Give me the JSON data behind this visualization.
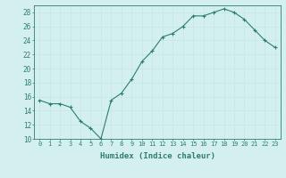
{
  "x": [
    0,
    1,
    2,
    3,
    4,
    5,
    6,
    7,
    8,
    9,
    10,
    11,
    12,
    13,
    14,
    15,
    16,
    17,
    18,
    19,
    20,
    21,
    22,
    23
  ],
  "y": [
    15.5,
    15.0,
    15.0,
    14.5,
    12.5,
    11.5,
    10.0,
    15.5,
    16.5,
    18.5,
    21.0,
    22.5,
    24.5,
    25.0,
    26.0,
    27.5,
    27.5,
    28.0,
    28.5,
    28.0,
    27.0,
    25.5,
    24.0,
    23.0
  ],
  "xlabel": "Humidex (Indice chaleur)",
  "ylim": [
    10,
    29
  ],
  "xlim": [
    -0.5,
    23.5
  ],
  "yticks": [
    10,
    12,
    14,
    16,
    18,
    20,
    22,
    24,
    26,
    28
  ],
  "xtick_labels": [
    "0",
    "1",
    "2",
    "3",
    "4",
    "5",
    "6",
    "7",
    "8",
    "9",
    "10",
    "11",
    "12",
    "13",
    "14",
    "15",
    "16",
    "17",
    "18",
    "19",
    "20",
    "21",
    "22",
    "23"
  ],
  "line_color": "#2e7d6e",
  "marker": "+",
  "bg_color": "#d4f0ee",
  "grid_color": "#c8e8e5",
  "font_color": "#2e7d6e"
}
